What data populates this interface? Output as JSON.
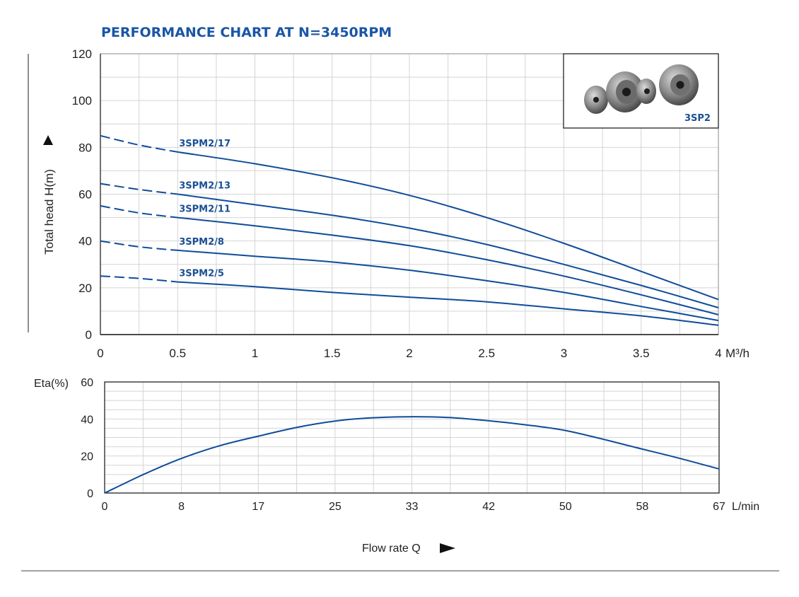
{
  "chart_data": [
    {
      "type": "line",
      "title": "PERFORMANCE CHART AT N=3450RPM",
      "ylabel": "Total head H(m)",
      "x_unit": "M³/h",
      "xlim": [
        0,
        4
      ],
      "ylim": [
        0,
        120
      ],
      "x_ticks": [
        "0",
        "0.5",
        "1",
        "1.5",
        "2",
        "2.5",
        "3",
        "3.5",
        "4"
      ],
      "y_ticks": [
        "0",
        "20",
        "40",
        "60",
        "80",
        "100",
        "120"
      ],
      "grid": true,
      "inset_label": "3SP2",
      "series": [
        {
          "name": "3SPM2/17",
          "dashed_until": 0.5,
          "x": [
            0,
            0.25,
            0.5,
            1,
            1.5,
            2,
            2.5,
            3,
            3.5,
            4
          ],
          "y": [
            85,
            81,
            78,
            73,
            67,
            59.5,
            50,
            39,
            27,
            15
          ]
        },
        {
          "name": "3SPM2/13",
          "dashed_until": 0.5,
          "x": [
            0,
            0.25,
            0.5,
            1,
            1.5,
            2,
            2.5,
            3,
            3.5,
            4
          ],
          "y": [
            64.5,
            62,
            60,
            55.5,
            51,
            45.5,
            38.5,
            30,
            21,
            11.5
          ]
        },
        {
          "name": "3SPM2/11",
          "dashed_until": 0.5,
          "x": [
            0,
            0.25,
            0.5,
            1,
            1.5,
            2,
            2.5,
            3,
            3.5,
            4
          ],
          "y": [
            55,
            52,
            50,
            46.5,
            42.5,
            38,
            32,
            25,
            17,
            8.5
          ]
        },
        {
          "name": "3SPM2/8",
          "dashed_until": 0.5,
          "x": [
            0,
            0.25,
            0.5,
            1,
            1.5,
            2,
            2.5,
            3,
            3.5,
            4
          ],
          "y": [
            40,
            37.5,
            36,
            33.5,
            31,
            27.5,
            23,
            18,
            12,
            6
          ]
        },
        {
          "name": "3SPM2/5",
          "dashed_until": 0.5,
          "x": [
            0,
            0.25,
            0.5,
            1,
            1.5,
            2,
            2.5,
            3,
            3.5,
            4
          ],
          "y": [
            25,
            24,
            22.5,
            20.5,
            18,
            16,
            14,
            11,
            8,
            4
          ]
        }
      ]
    },
    {
      "type": "line",
      "ylabel": "Eta(%)",
      "xlabel": "Flow rate Q",
      "x_unit": "L/min",
      "xlim": [
        0,
        67
      ],
      "ylim": [
        0,
        60
      ],
      "x_ticks": [
        "0",
        "8",
        "17",
        "25",
        "33",
        "42",
        "50",
        "58",
        "67"
      ],
      "y_ticks": [
        "0",
        "20",
        "40",
        "60"
      ],
      "grid": true,
      "series": [
        {
          "x": [
            0,
            4,
            8,
            12.5,
            17,
            21,
            25,
            29,
            33,
            37.5,
            42,
            46,
            50,
            54,
            58,
            62.5,
            67
          ],
          "y": [
            0,
            9.5,
            18,
            25.5,
            31,
            35.5,
            38.8,
            40.6,
            41.2,
            40.8,
            39,
            36.8,
            34,
            29.5,
            24.5,
            19,
            13
          ]
        }
      ]
    }
  ]
}
